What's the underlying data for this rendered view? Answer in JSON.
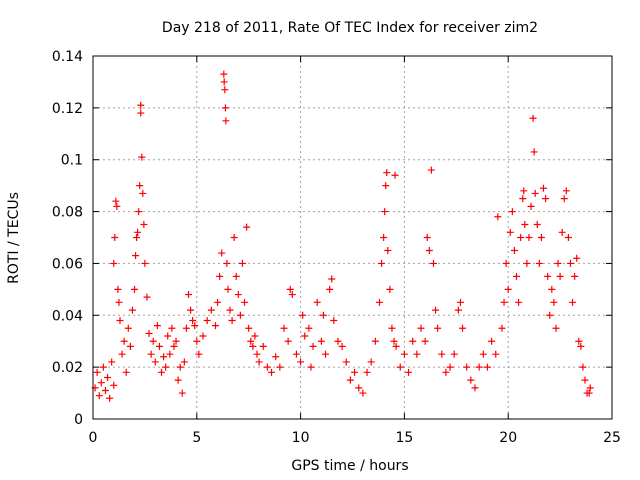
{
  "chart_data": {
    "type": "scatter",
    "title": "Day 218 of 2011, Rate Of TEC Index for receiver zim2",
    "xlabel": "GPS time / hours",
    "ylabel": "ROTI / TECUs",
    "xlim": [
      0,
      24
    ],
    "ylim": [
      0,
      0.14
    ],
    "x_ticks": [
      0,
      5,
      10,
      15,
      20,
      25
    ],
    "x_tick_labels": [
      "0",
      "5",
      "10",
      "15",
      "20",
      "25"
    ],
    "y_ticks": [
      0,
      0.02,
      0.04,
      0.06,
      0.08,
      0.1,
      0.12,
      0.14
    ],
    "y_tick_labels": [
      "0",
      "0.02",
      "0.04",
      "0.06",
      "0.08",
      "0.1",
      "0.12",
      "0.14"
    ],
    "grid": true,
    "marker": "+",
    "series_color": "#ff0000",
    "series": [
      {
        "name": "ROTI",
        "points": [
          [
            0.1,
            0.012
          ],
          [
            0.2,
            0.018
          ],
          [
            0.3,
            0.009
          ],
          [
            0.4,
            0.014
          ],
          [
            0.5,
            0.02
          ],
          [
            0.6,
            0.011
          ],
          [
            0.7,
            0.016
          ],
          [
            0.8,
            0.008
          ],
          [
            0.9,
            0.022
          ],
          [
            1.0,
            0.013
          ],
          [
            1.0,
            0.06
          ],
          [
            1.05,
            0.07
          ],
          [
            1.1,
            0.084
          ],
          [
            1.15,
            0.082
          ],
          [
            1.2,
            0.05
          ],
          [
            1.25,
            0.045
          ],
          [
            1.3,
            0.038
          ],
          [
            1.4,
            0.025
          ],
          [
            1.5,
            0.03
          ],
          [
            1.6,
            0.018
          ],
          [
            1.7,
            0.035
          ],
          [
            1.8,
            0.028
          ],
          [
            1.9,
            0.042
          ],
          [
            2.0,
            0.05
          ],
          [
            2.05,
            0.063
          ],
          [
            2.1,
            0.07
          ],
          [
            2.15,
            0.072
          ],
          [
            2.2,
            0.08
          ],
          [
            2.25,
            0.09
          ],
          [
            2.3,
            0.118
          ],
          [
            2.3,
            0.121
          ],
          [
            2.35,
            0.101
          ],
          [
            2.4,
            0.087
          ],
          [
            2.45,
            0.075
          ],
          [
            2.5,
            0.06
          ],
          [
            2.6,
            0.047
          ],
          [
            2.7,
            0.033
          ],
          [
            2.8,
            0.025
          ],
          [
            2.9,
            0.03
          ],
          [
            3.0,
            0.022
          ],
          [
            3.1,
            0.036
          ],
          [
            3.2,
            0.028
          ],
          [
            3.3,
            0.018
          ],
          [
            3.4,
            0.024
          ],
          [
            3.5,
            0.02
          ],
          [
            3.6,
            0.032
          ],
          [
            3.7,
            0.025
          ],
          [
            3.8,
            0.035
          ],
          [
            3.9,
            0.028
          ],
          [
            4.0,
            0.03
          ],
          [
            4.1,
            0.015
          ],
          [
            4.2,
            0.02
          ],
          [
            4.3,
            0.01
          ],
          [
            4.4,
            0.022
          ],
          [
            4.5,
            0.035
          ],
          [
            4.6,
            0.048
          ],
          [
            4.7,
            0.042
          ],
          [
            4.8,
            0.038
          ],
          [
            4.9,
            0.036
          ],
          [
            5.0,
            0.03
          ],
          [
            5.1,
            0.025
          ],
          [
            5.3,
            0.032
          ],
          [
            5.5,
            0.038
          ],
          [
            5.7,
            0.042
          ],
          [
            5.9,
            0.036
          ],
          [
            6.0,
            0.045
          ],
          [
            6.1,
            0.055
          ],
          [
            6.2,
            0.064
          ],
          [
            6.3,
            0.133
          ],
          [
            6.32,
            0.13
          ],
          [
            6.35,
            0.127
          ],
          [
            6.38,
            0.12
          ],
          [
            6.4,
            0.115
          ],
          [
            6.45,
            0.06
          ],
          [
            6.5,
            0.05
          ],
          [
            6.6,
            0.042
          ],
          [
            6.7,
            0.038
          ],
          [
            6.8,
            0.07
          ],
          [
            6.9,
            0.055
          ],
          [
            7.0,
            0.048
          ],
          [
            7.1,
            0.04
          ],
          [
            7.2,
            0.06
          ],
          [
            7.3,
            0.045
          ],
          [
            7.4,
            0.074
          ],
          [
            7.5,
            0.035
          ],
          [
            7.6,
            0.03
          ],
          [
            7.7,
            0.028
          ],
          [
            7.8,
            0.032
          ],
          [
            7.9,
            0.025
          ],
          [
            8.0,
            0.022
          ],
          [
            8.2,
            0.028
          ],
          [
            8.4,
            0.02
          ],
          [
            8.6,
            0.018
          ],
          [
            8.8,
            0.024
          ],
          [
            9.0,
            0.02
          ],
          [
            9.2,
            0.035
          ],
          [
            9.4,
            0.03
          ],
          [
            9.5,
            0.05
          ],
          [
            9.6,
            0.048
          ],
          [
            9.8,
            0.025
          ],
          [
            10.0,
            0.022
          ],
          [
            10.1,
            0.04
          ],
          [
            10.2,
            0.032
          ],
          [
            10.4,
            0.035
          ],
          [
            10.5,
            0.02
          ],
          [
            10.6,
            0.028
          ],
          [
            10.8,
            0.045
          ],
          [
            11.0,
            0.03
          ],
          [
            11.1,
            0.04
          ],
          [
            11.2,
            0.025
          ],
          [
            11.4,
            0.05
          ],
          [
            11.5,
            0.054
          ],
          [
            11.6,
            0.038
          ],
          [
            11.8,
            0.03
          ],
          [
            12.0,
            0.028
          ],
          [
            12.2,
            0.022
          ],
          [
            12.4,
            0.015
          ],
          [
            12.6,
            0.018
          ],
          [
            12.8,
            0.012
          ],
          [
            13.0,
            0.01
          ],
          [
            13.2,
            0.018
          ],
          [
            13.4,
            0.022
          ],
          [
            13.6,
            0.03
          ],
          [
            13.8,
            0.045
          ],
          [
            13.9,
            0.06
          ],
          [
            14.0,
            0.07
          ],
          [
            14.05,
            0.08
          ],
          [
            14.1,
            0.09
          ],
          [
            14.15,
            0.095
          ],
          [
            14.2,
            0.065
          ],
          [
            14.3,
            0.05
          ],
          [
            14.4,
            0.035
          ],
          [
            14.5,
            0.03
          ],
          [
            14.55,
            0.094
          ],
          [
            14.6,
            0.028
          ],
          [
            14.8,
            0.02
          ],
          [
            15.0,
            0.025
          ],
          [
            15.2,
            0.018
          ],
          [
            15.4,
            0.03
          ],
          [
            15.6,
            0.025
          ],
          [
            15.8,
            0.035
          ],
          [
            16.0,
            0.03
          ],
          [
            16.1,
            0.07
          ],
          [
            16.2,
            0.065
          ],
          [
            16.3,
            0.096
          ],
          [
            16.4,
            0.06
          ],
          [
            16.5,
            0.042
          ],
          [
            16.6,
            0.035
          ],
          [
            16.8,
            0.025
          ],
          [
            17.0,
            0.018
          ],
          [
            17.2,
            0.02
          ],
          [
            17.4,
            0.025
          ],
          [
            17.6,
            0.042
          ],
          [
            17.7,
            0.045
          ],
          [
            17.8,
            0.035
          ],
          [
            18.0,
            0.02
          ],
          [
            18.2,
            0.015
          ],
          [
            18.4,
            0.012
          ],
          [
            18.6,
            0.02
          ],
          [
            18.8,
            0.025
          ],
          [
            19.0,
            0.02
          ],
          [
            19.2,
            0.03
          ],
          [
            19.4,
            0.025
          ],
          [
            19.5,
            0.078
          ],
          [
            19.7,
            0.035
          ],
          [
            19.8,
            0.045
          ],
          [
            19.9,
            0.06
          ],
          [
            20.0,
            0.05
          ],
          [
            20.1,
            0.072
          ],
          [
            20.2,
            0.08
          ],
          [
            20.3,
            0.065
          ],
          [
            20.4,
            0.055
          ],
          [
            20.5,
            0.045
          ],
          [
            20.6,
            0.07
          ],
          [
            20.7,
            0.085
          ],
          [
            20.75,
            0.088
          ],
          [
            20.8,
            0.075
          ],
          [
            20.9,
            0.06
          ],
          [
            21.0,
            0.07
          ],
          [
            21.1,
            0.082
          ],
          [
            21.2,
            0.116
          ],
          [
            21.25,
            0.103
          ],
          [
            21.3,
            0.087
          ],
          [
            21.4,
            0.075
          ],
          [
            21.5,
            0.06
          ],
          [
            21.6,
            0.07
          ],
          [
            21.7,
            0.089
          ],
          [
            21.8,
            0.085
          ],
          [
            21.9,
            0.055
          ],
          [
            22.0,
            0.04
          ],
          [
            22.1,
            0.05
          ],
          [
            22.2,
            0.045
          ],
          [
            22.3,
            0.035
          ],
          [
            22.4,
            0.06
          ],
          [
            22.5,
            0.055
          ],
          [
            22.6,
            0.072
          ],
          [
            22.7,
            0.085
          ],
          [
            22.8,
            0.088
          ],
          [
            22.9,
            0.07
          ],
          [
            23.0,
            0.06
          ],
          [
            23.1,
            0.045
          ],
          [
            23.2,
            0.055
          ],
          [
            23.3,
            0.062
          ],
          [
            23.4,
            0.03
          ],
          [
            23.5,
            0.028
          ],
          [
            23.6,
            0.02
          ],
          [
            23.7,
            0.015
          ],
          [
            23.8,
            0.01
          ],
          [
            23.9,
            0.01
          ],
          [
            23.95,
            0.012
          ]
        ]
      }
    ]
  }
}
